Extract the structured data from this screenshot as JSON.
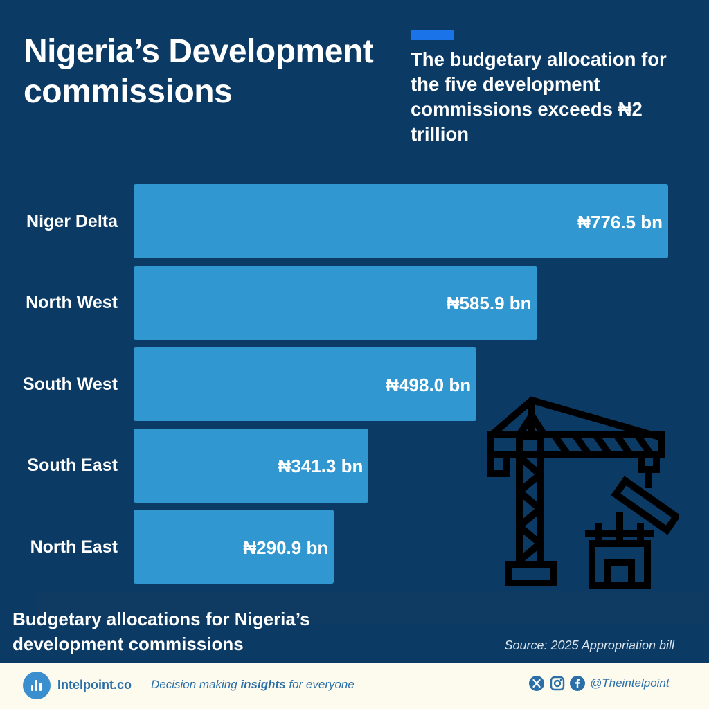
{
  "header": {
    "title": "Nigeria’s Development commissions",
    "subtitle": "The budgetary allocation for the five development commissions exceeds ₦2 trillion"
  },
  "chart_data": {
    "type": "bar",
    "orientation": "horizontal",
    "title": "Budgetary allocations for Nigeria’s development commissions",
    "categories": [
      "Niger Delta",
      "North West",
      "South West",
      "South East",
      "North East"
    ],
    "values": [
      776.5,
      585.9,
      498.0,
      341.3,
      290.9
    ],
    "value_labels": [
      "₦776.5 bn",
      "₦585.9 bn",
      "₦498.0 bn",
      "₦341.3 bn",
      "₦290.9 bn"
    ],
    "unit": "₦ bn",
    "xlim": [
      0,
      776.5
    ],
    "bar_color": "#3097d0",
    "grid": false,
    "legend": "none"
  },
  "source": "Source: 2025 Appropriation bill",
  "footer": {
    "brand": "Intelpoint.co",
    "tagline_before": "Decision making ",
    "tagline_bold": "insights",
    "tagline_after": " for everyone",
    "handle": "@Theintelpoint",
    "social_icons": [
      "x-icon",
      "instagram-icon",
      "facebook-icon"
    ]
  },
  "colors": {
    "background": "#0b3a64",
    "accent": "#1a73e8",
    "bar": "#3097d0",
    "footer_bg": "#fdfaee",
    "footer_text": "#2a6fa8"
  }
}
